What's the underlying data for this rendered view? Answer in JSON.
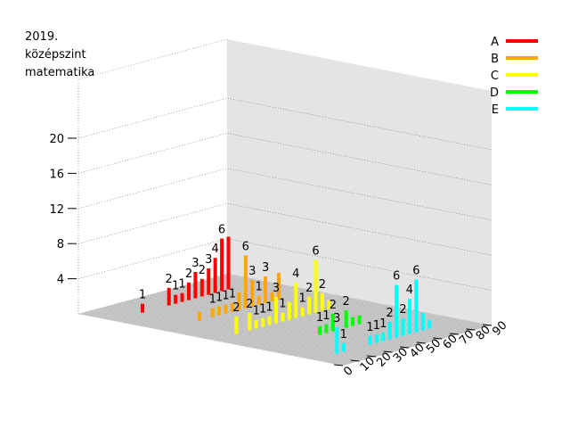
{
  "chart_data": {
    "type": "bar",
    "title_lines": [
      "2019.",
      "középszint",
      "matematika"
    ],
    "z_ticks": [
      "4",
      "8",
      "12",
      "16",
      "20"
    ],
    "x_ticks": [
      "0",
      "10",
      "20",
      "30",
      "40",
      "50",
      "60",
      "70",
      "80",
      "90"
    ],
    "grid": true,
    "legend_position": "top-right",
    "series": [
      {
        "name": "A",
        "color": "#ff0000",
        "x": [
          18,
          34,
          38,
          42,
          46,
          50,
          54,
          58,
          62,
          66,
          70
        ],
        "values": [
          1,
          2,
          1,
          1,
          2,
          3,
          2,
          3,
          4,
          6,
          6
        ],
        "labels": [
          "1",
          "2",
          "1",
          "1",
          "2",
          "3",
          "2",
          "3",
          "4",
          "6",
          ""
        ]
      },
      {
        "name": "B",
        "color": "#ffa500",
        "x": [
          22,
          30,
          34,
          38,
          42,
          46,
          50,
          54,
          58,
          62,
          66,
          70
        ],
        "values": [
          1,
          1,
          1,
          1,
          1,
          2,
          6,
          3,
          1,
          3,
          1,
          3
        ],
        "labels": [
          "",
          "1",
          "1",
          "1",
          "1",
          "",
          "6",
          "3",
          "1",
          "3",
          "",
          ""
        ]
      },
      {
        "name": "C",
        "color": "#ffff00",
        "x": [
          14,
          22,
          26,
          30,
          34,
          38,
          42,
          46,
          50,
          54,
          58,
          62,
          66,
          70
        ],
        "values": [
          2,
          2,
          1,
          1,
          1,
          3,
          1,
          2,
          4,
          1,
          2,
          6,
          2,
          1
        ],
        "labels": [
          "2",
          "2",
          "1",
          "1",
          "1",
          "3",
          "1",
          "",
          "4",
          "1",
          "2",
          "6",
          "2",
          ""
        ]
      },
      {
        "name": "D",
        "color": "#00ff00",
        "x": [
          34,
          38,
          42,
          50,
          54,
          58
        ],
        "values": [
          1,
          1,
          2,
          2,
          1,
          1
        ],
        "labels": [
          "1",
          "1",
          "2",
          "2",
          "",
          ""
        ]
      },
      {
        "name": "E",
        "color": "#00ffff",
        "x": [
          14,
          18,
          34,
          38,
          42,
          46,
          50,
          54,
          58,
          62,
          66,
          70
        ],
        "values": [
          3,
          1,
          1,
          1,
          1,
          2,
          6,
          2,
          4,
          6,
          2,
          1
        ],
        "labels": [
          "3",
          "1",
          "1",
          "1",
          "1",
          "2",
          "6",
          "2",
          "4",
          "6",
          "",
          ""
        ]
      }
    ]
  }
}
